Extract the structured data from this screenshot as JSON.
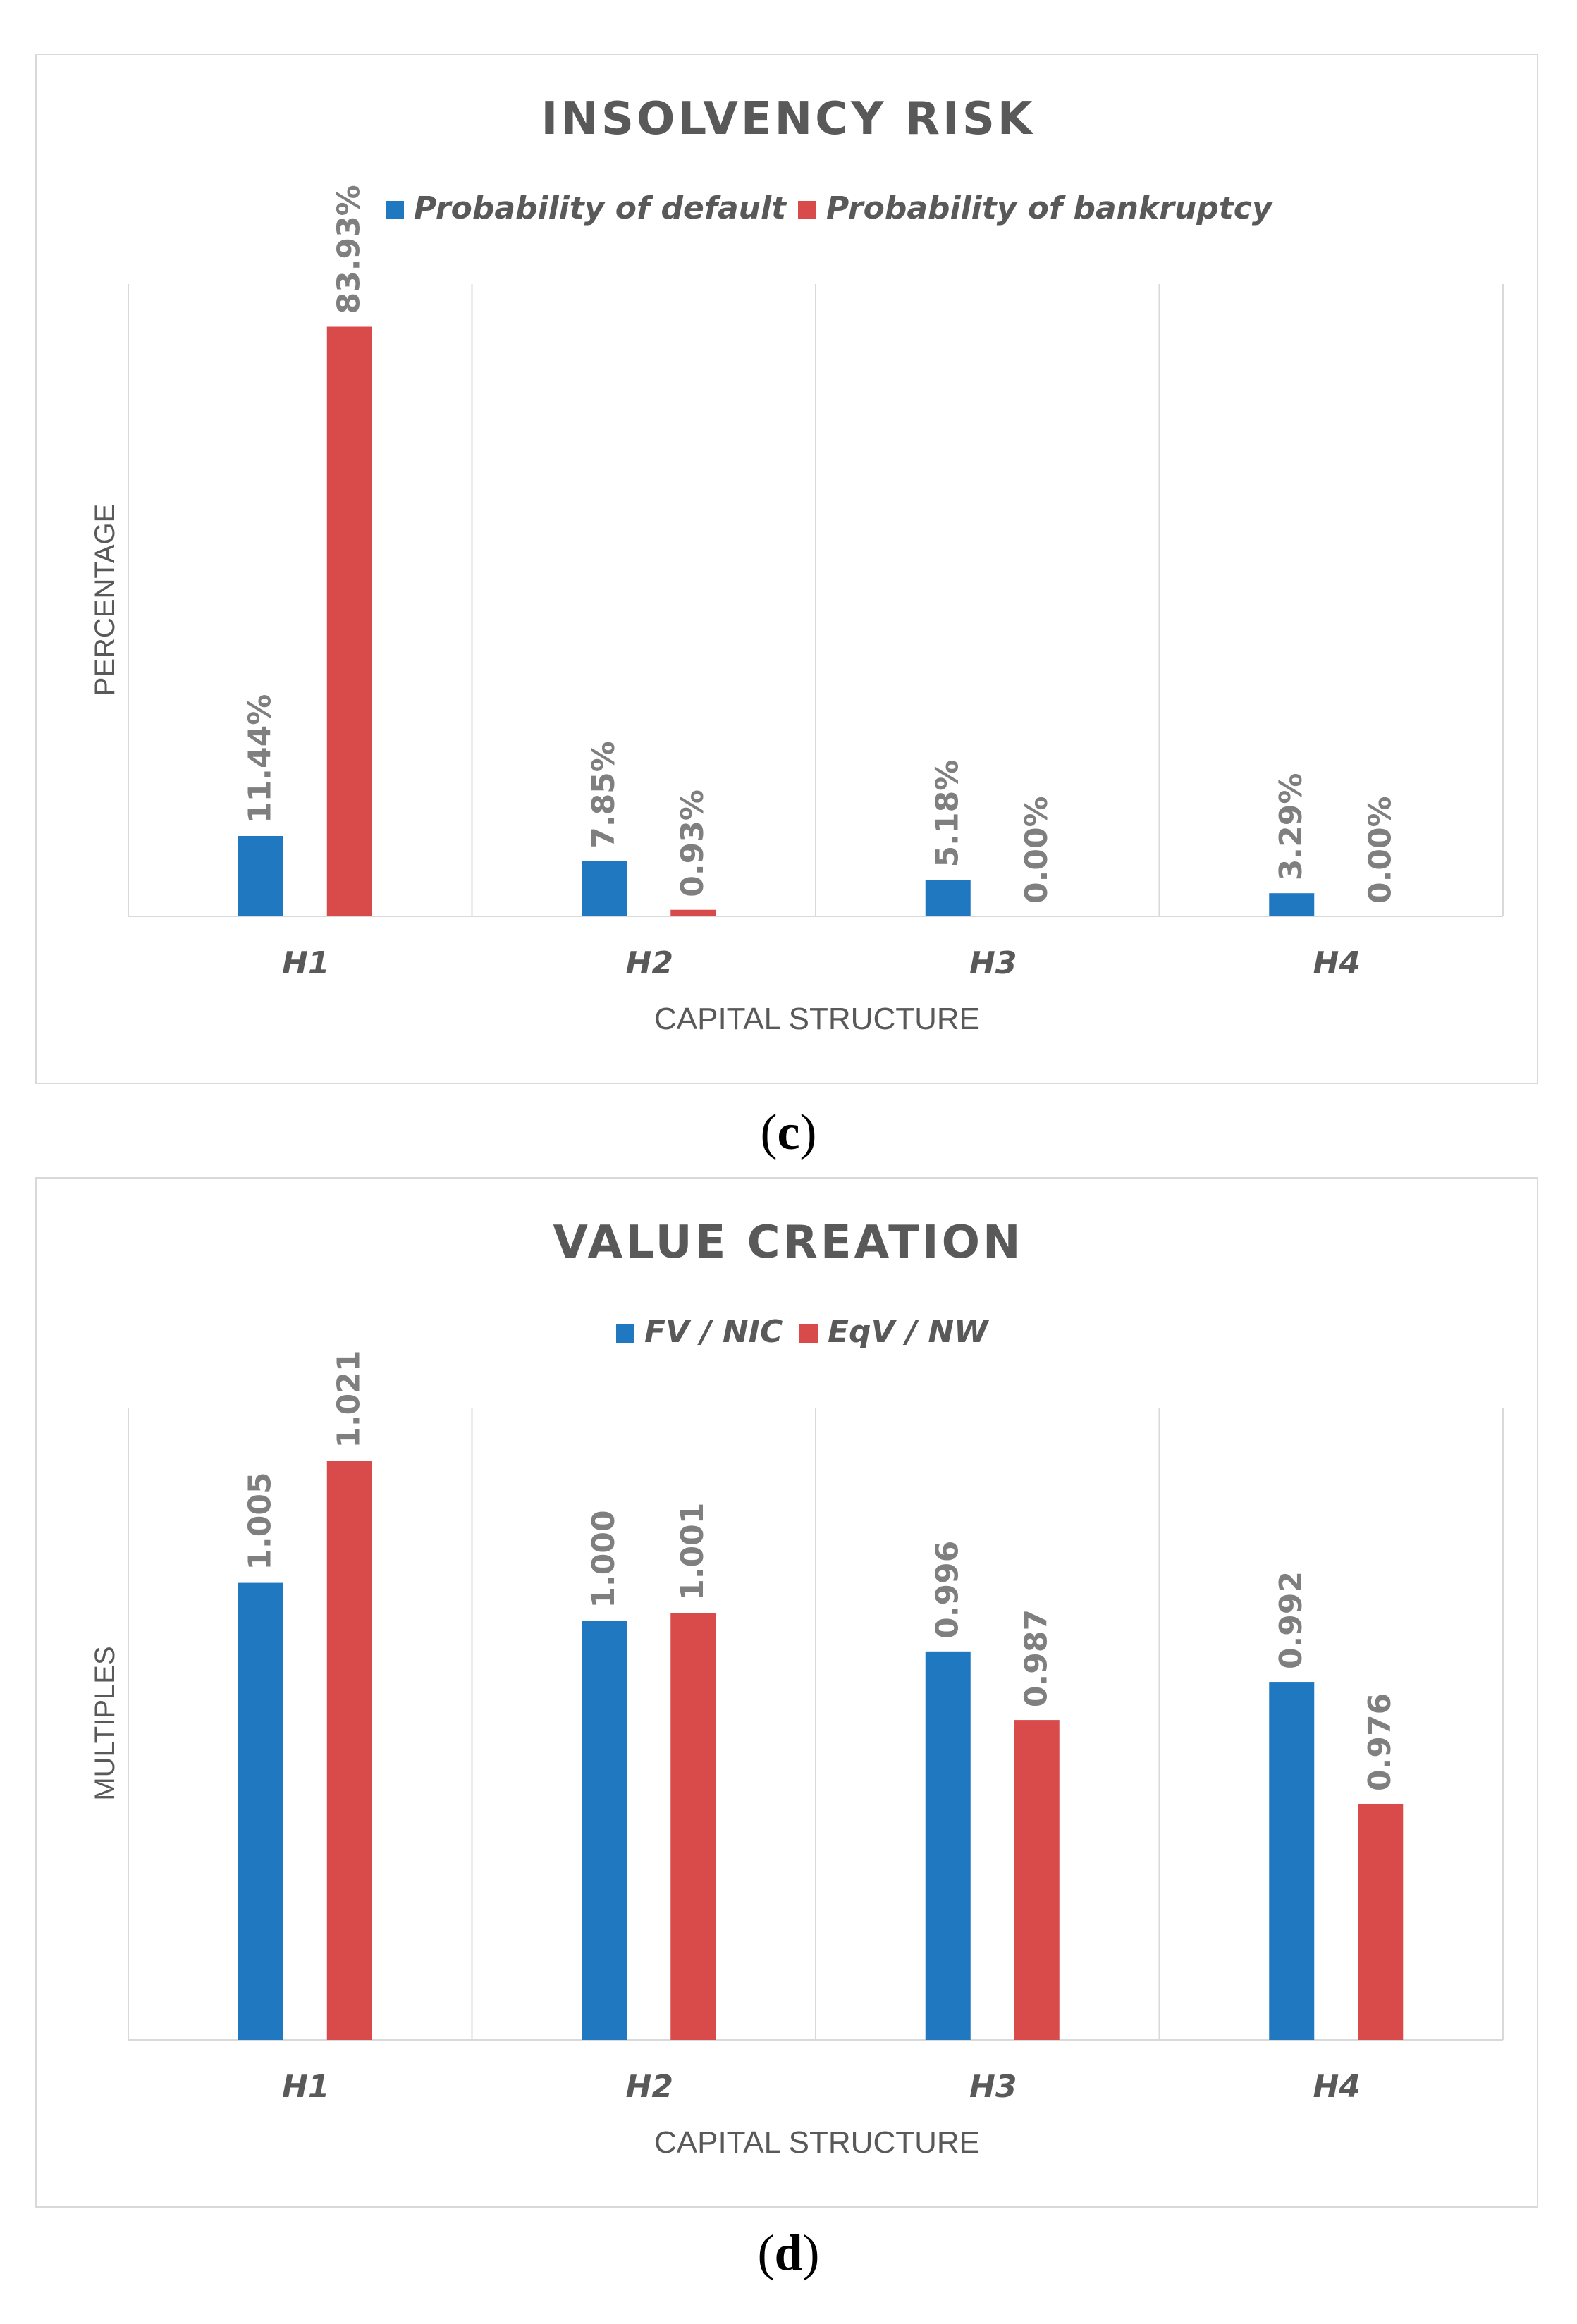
{
  "captions": [
    "c",
    "d"
  ],
  "colors": {
    "series1": "#2079C0",
    "series2": "#D94B4B",
    "grid": "#d9d9d9",
    "text": "#595959",
    "label": "#7f7f7f"
  },
  "chart_data": [
    {
      "type": "bar",
      "title": "INSOLVENCY RISK",
      "xlabel": "CAPITAL STRUCTURE",
      "ylabel": "PERCENTAGE",
      "categories": [
        "H1",
        "H2",
        "H3",
        "H4"
      ],
      "series": [
        {
          "name": "Probability of default",
          "values": [
            11.44,
            7.85,
            5.18,
            3.29
          ],
          "labels": [
            "11.44%",
            "7.85%",
            "5.18%",
            "3.29%"
          ]
        },
        {
          "name": "Probability of bankruptcy",
          "values": [
            83.93,
            0.93,
            0.0,
            0.0
          ],
          "labels": [
            "83.93%",
            "0.93%",
            "0.00%",
            "0.00%"
          ]
        }
      ],
      "ylim": [
        0,
        90
      ],
      "legend": "top",
      "grid": "vertical"
    },
    {
      "type": "bar",
      "title": "VALUE CREATION",
      "xlabel": "CAPITAL STRUCTURE",
      "ylabel": "MULTIPLES",
      "categories": [
        "H1",
        "H2",
        "H3",
        "H4"
      ],
      "series": [
        {
          "name": "FV / NIC",
          "values": [
            1.005,
            1.0,
            0.996,
            0.992
          ],
          "labels": [
            "1.005",
            "1.000",
            "0.996",
            "0.992"
          ]
        },
        {
          "name": "EqV / NW",
          "values": [
            1.021,
            1.001,
            0.987,
            0.976
          ],
          "labels": [
            "1.021",
            "1.001",
            "0.987",
            "0.976"
          ]
        }
      ],
      "ylim": [
        0.945,
        1.028
      ],
      "legend": "top",
      "grid": "vertical"
    }
  ]
}
